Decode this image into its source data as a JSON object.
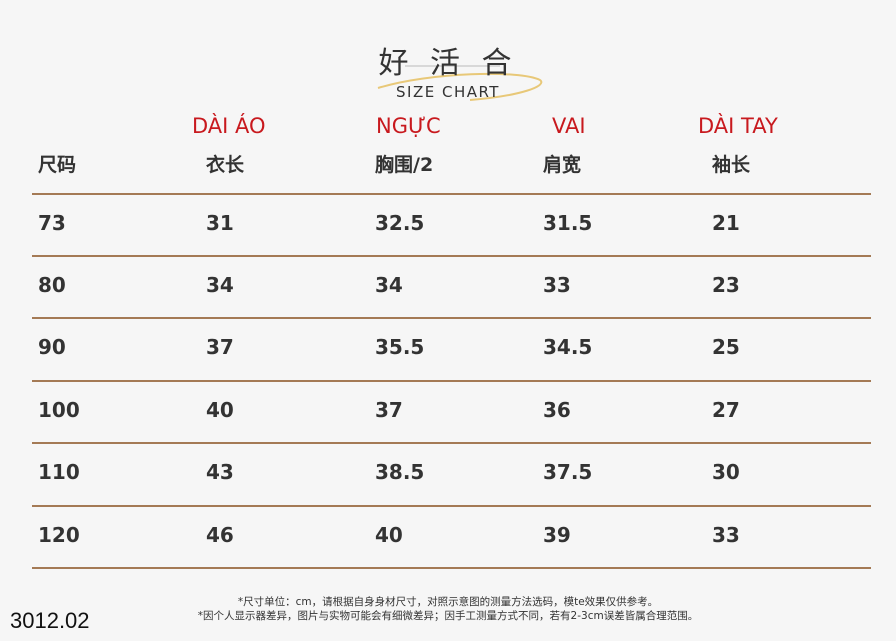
{
  "header": {
    "title": "好 活 合",
    "subtitle": "SIZE CHART"
  },
  "table": {
    "labels_vn": [
      "DÀI ÁO",
      "NGỰC",
      "VAI",
      "DÀI TAY"
    ],
    "columns": [
      "尺码",
      "衣长",
      "胸围/2",
      "肩宽",
      "袖长"
    ],
    "rows": [
      [
        "73",
        "31",
        "32.5",
        "31.5",
        "21"
      ],
      [
        "80",
        "34",
        "34",
        "33",
        "23"
      ],
      [
        "90",
        "37",
        "35.5",
        "34.5",
        "25"
      ],
      [
        "100",
        "40",
        "37",
        "36",
        "27"
      ],
      [
        "110",
        "43",
        "38.5",
        "37.5",
        "30"
      ],
      [
        "120",
        "46",
        "40",
        "39",
        "33"
      ]
    ]
  },
  "notes": [
    "*尺寸单位：cm，请根据自身身材尺寸，对照示意图的测量方法选码，模te效果仅供参考。",
    "*因个人显示器差异，图片与实物可能会有细微差异；因手工测量方式不同，若有2-3cm误差皆属合理范围。"
  ],
  "code": "3012.02"
}
